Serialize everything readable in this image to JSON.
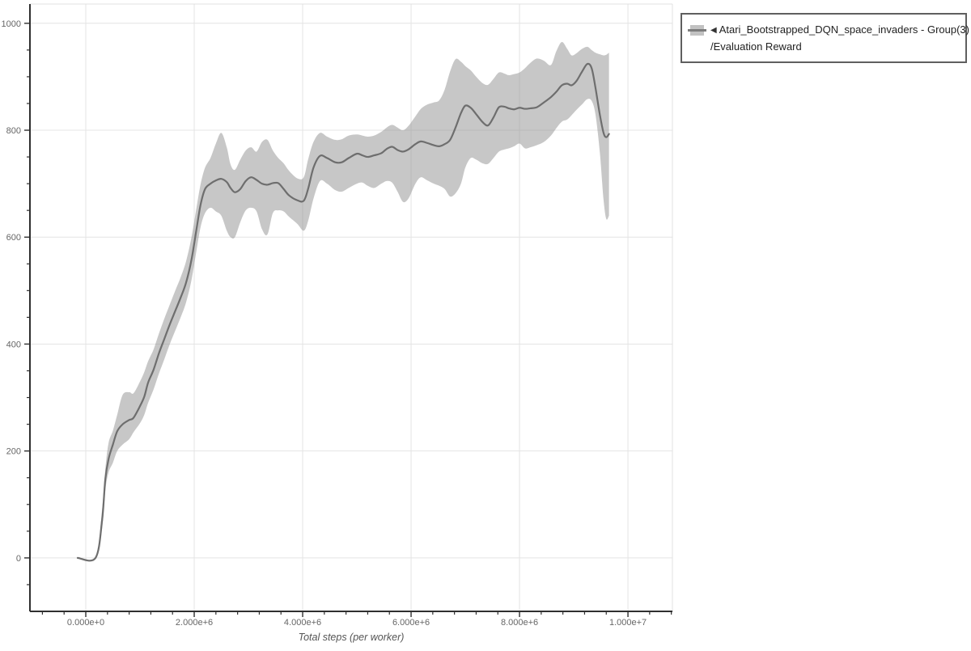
{
  "legend": {
    "collapse_icon": "◀",
    "line1": "Atari_Bootstrapped_DQN_space_invaders - Group(3)",
    "line2": "/Evaluation Reward"
  },
  "colors": {
    "mean_line": "#6e6e6e",
    "band_fill": "#8f8f8f",
    "band_opacity": 0.5,
    "gridline": "#e4e4e4",
    "plot_border": "#e0e0e0",
    "axis_spine": "#2f2f2f",
    "tick_label": "#666666",
    "legend_border": "#5f5f5f"
  },
  "chart_data": {
    "type": "line",
    "title": "",
    "xlabel": "Total steps (per worker)",
    "ylabel": "",
    "grid": true,
    "legend_position": "outside-top-right",
    "x_range": [
      -1030000,
      10820000
    ],
    "y_range": [
      -100,
      1036
    ],
    "x_ticks": {
      "values": [
        0,
        2000000,
        4000000,
        6000000,
        8000000,
        10000000
      ],
      "labels": [
        "0.000e+0",
        "2.000e+6",
        "4.000e+6",
        "6.000e+6",
        "8.000e+6",
        "1.000e+7"
      ],
      "minor_step": 400000
    },
    "y_ticks": {
      "values": [
        0,
        200,
        400,
        600,
        800,
        1000
      ],
      "labels": [
        "0",
        "200",
        "400",
        "600",
        "800",
        "1000"
      ],
      "minor_step": 50
    },
    "series": [
      {
        "name": "Atari_Bootstrapped_DQN_space_invaders - Group(3)/Evaluation Reward",
        "style": "mean_line_with_confidence_band",
        "points_format": [
          "total_steps",
          "band_low",
          "mean",
          "band_high"
        ],
        "points": [
          [
            -150000,
            0,
            0,
            0
          ],
          [
            180000,
            0,
            0,
            0
          ],
          [
            300000,
            55,
            70,
            90
          ],
          [
            360000,
            126,
            147,
            166
          ],
          [
            420000,
            160,
            185,
            215
          ],
          [
            500000,
            178,
            212,
            238
          ],
          [
            580000,
            200,
            237,
            268
          ],
          [
            680000,
            212,
            250,
            305
          ],
          [
            800000,
            222,
            258,
            310
          ],
          [
            880000,
            235,
            262,
            308
          ],
          [
            1000000,
            252,
            284,
            330
          ],
          [
            1080000,
            268,
            302,
            348
          ],
          [
            1150000,
            290,
            328,
            368
          ],
          [
            1250000,
            315,
            352,
            390
          ],
          [
            1350000,
            345,
            383,
            420
          ],
          [
            1450000,
            372,
            410,
            448
          ],
          [
            1550000,
            400,
            437,
            474
          ],
          [
            1650000,
            425,
            462,
            500
          ],
          [
            1750000,
            450,
            487,
            525
          ],
          [
            1850000,
            478,
            515,
            555
          ],
          [
            1950000,
            520,
            558,
            600
          ],
          [
            2050000,
            580,
            620,
            660
          ],
          [
            2120000,
            620,
            662,
            700
          ],
          [
            2200000,
            645,
            690,
            730
          ],
          [
            2300000,
            655,
            700,
            748
          ],
          [
            2400000,
            648,
            706,
            775
          ],
          [
            2500000,
            640,
            709,
            795
          ],
          [
            2600000,
            612,
            703,
            768
          ],
          [
            2670000,
            600,
            692,
            736
          ],
          [
            2750000,
            600,
            684,
            726
          ],
          [
            2850000,
            628,
            690,
            745
          ],
          [
            2950000,
            650,
            705,
            762
          ],
          [
            3050000,
            655,
            712,
            768
          ],
          [
            3150000,
            648,
            707,
            760
          ],
          [
            3250000,
            615,
            700,
            778
          ],
          [
            3350000,
            605,
            698,
            782
          ],
          [
            3450000,
            645,
            701,
            762
          ],
          [
            3550000,
            650,
            701,
            748
          ],
          [
            3650000,
            648,
            690,
            738
          ],
          [
            3750000,
            638,
            678,
            724
          ],
          [
            3900000,
            625,
            669,
            710
          ],
          [
            4020000,
            612,
            668,
            712
          ],
          [
            4100000,
            630,
            690,
            745
          ],
          [
            4200000,
            672,
            730,
            778
          ],
          [
            4320000,
            705,
            752,
            795
          ],
          [
            4450000,
            700,
            748,
            788
          ],
          [
            4600000,
            688,
            740,
            782
          ],
          [
            4720000,
            685,
            740,
            783
          ],
          [
            4850000,
            692,
            748,
            790
          ],
          [
            5000000,
            700,
            756,
            792
          ],
          [
            5100000,
            702,
            753,
            790
          ],
          [
            5200000,
            696,
            750,
            788
          ],
          [
            5320000,
            692,
            753,
            790
          ],
          [
            5450000,
            700,
            757,
            797
          ],
          [
            5550000,
            705,
            765,
            805
          ],
          [
            5650000,
            702,
            769,
            810
          ],
          [
            5750000,
            685,
            763,
            805
          ],
          [
            5850000,
            666,
            760,
            800
          ],
          [
            5950000,
            672,
            764,
            808
          ],
          [
            6080000,
            700,
            774,
            826
          ],
          [
            6180000,
            712,
            779,
            840
          ],
          [
            6300000,
            706,
            776,
            848
          ],
          [
            6420000,
            700,
            772,
            852
          ],
          [
            6520000,
            696,
            770,
            856
          ],
          [
            6620000,
            690,
            774,
            876
          ],
          [
            6720000,
            676,
            782,
            910
          ],
          [
            6820000,
            682,
            805,
            933
          ],
          [
            6920000,
            700,
            832,
            928
          ],
          [
            7000000,
            730,
            846,
            920
          ],
          [
            7100000,
            748,
            842,
            912
          ],
          [
            7200000,
            745,
            830,
            900
          ],
          [
            7320000,
            738,
            815,
            888
          ],
          [
            7420000,
            737,
            809,
            885
          ],
          [
            7520000,
            748,
            824,
            896
          ],
          [
            7620000,
            760,
            843,
            908
          ],
          [
            7720000,
            764,
            844,
            906
          ],
          [
            7800000,
            766,
            841,
            903
          ],
          [
            7900000,
            770,
            839,
            905
          ],
          [
            8000000,
            775,
            842,
            908
          ],
          [
            8100000,
            766,
            840,
            916
          ],
          [
            8200000,
            768,
            841,
            926
          ],
          [
            8320000,
            772,
            843,
            934
          ],
          [
            8450000,
            778,
            852,
            930
          ],
          [
            8580000,
            790,
            862,
            922
          ],
          [
            8680000,
            804,
            872,
            948
          ],
          [
            8780000,
            816,
            884,
            965
          ],
          [
            8880000,
            820,
            887,
            952
          ],
          [
            8960000,
            828,
            884,
            940
          ],
          [
            9050000,
            838,
            892,
            944
          ],
          [
            9150000,
            848,
            909,
            952
          ],
          [
            9250000,
            858,
            924,
            956
          ],
          [
            9330000,
            855,
            916,
            950
          ],
          [
            9400000,
            830,
            880,
            945
          ],
          [
            9480000,
            760,
            830,
            942
          ],
          [
            9550000,
            670,
            795,
            940
          ],
          [
            9600000,
            634,
            787,
            941
          ],
          [
            9650000,
            640,
            793,
            945
          ]
        ]
      }
    ]
  }
}
